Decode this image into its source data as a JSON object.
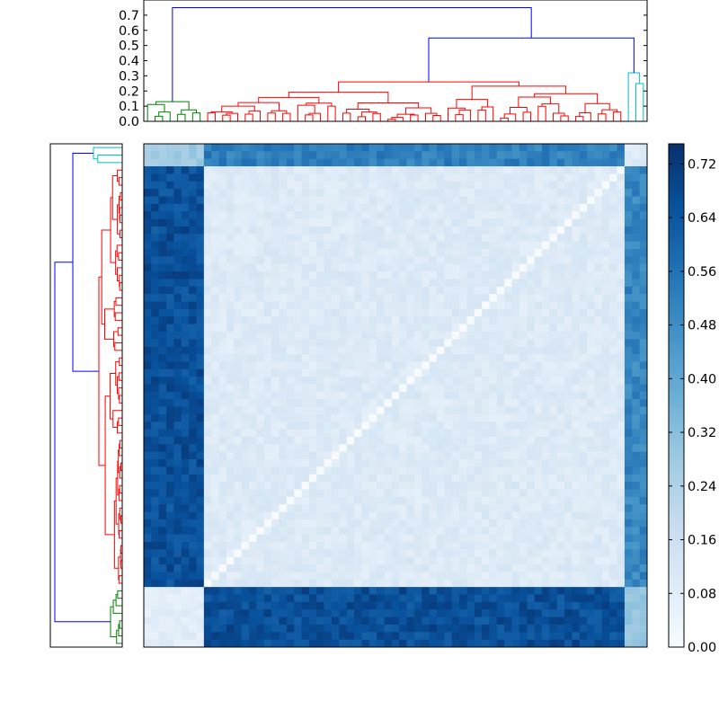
{
  "chart_data": [
    {
      "type": "dendrogram",
      "orientation": "top",
      "ylim": [
        0,
        0.8
      ],
      "yticks": [
        "0.0",
        "0.1",
        "0.2",
        "0.3",
        "0.4",
        "0.5",
        "0.6",
        "0.7"
      ],
      "ytick_values": [
        0.0,
        0.1,
        0.2,
        0.3,
        0.4,
        0.5,
        0.6,
        0.7
      ],
      "n_leaves": 67,
      "clusters": [
        {
          "color": "#008000",
          "leaves": 8,
          "merge_height": 0.13
        },
        {
          "color": "#ff0000",
          "leaves": 56,
          "merge_height": 0.26
        },
        {
          "color": "#00bfbf",
          "leaves": 3,
          "merge_height": 0.32
        }
      ],
      "top_links": [
        {
          "color": "#0000ff",
          "join": [
            "red",
            "cyan"
          ],
          "height": 0.55
        },
        {
          "color": "#0000ff",
          "join": [
            "green",
            "red+cyan"
          ],
          "height": 0.75
        }
      ]
    },
    {
      "type": "dendrogram",
      "orientation": "left",
      "n_leaves": 67,
      "clusters": [
        {
          "color": "#00bfbf",
          "leaves": 3
        },
        {
          "color": "#ff0000",
          "leaves": 56
        },
        {
          "color": "#008000",
          "leaves": 8
        }
      ],
      "top_links": [
        {
          "color": "#0000ff",
          "join": [
            "cyan",
            "red"
          ]
        },
        {
          "color": "#0000ff",
          "join": [
            "cyan+red",
            "green"
          ]
        }
      ]
    },
    {
      "type": "heatmap",
      "n_rows": 67,
      "n_cols": 67,
      "colormap": "Blues",
      "vmin": 0.0,
      "vmax": 0.75,
      "row_groups": [
        {
          "name": "cyan",
          "size": 3
        },
        {
          "name": "red",
          "size": 56
        },
        {
          "name": "green",
          "size": 8
        }
      ],
      "col_groups": [
        {
          "name": "green",
          "size": 8
        },
        {
          "name": "red",
          "size": 56
        },
        {
          "name": "cyan",
          "size": 3
        }
      ],
      "block_values": {
        "cyan-green": 0.28,
        "cyan-red": 0.52,
        "cyan-cyan": 0.1,
        "red-green": 0.66,
        "red-red": 0.1,
        "red-cyan": 0.5,
        "green-green": 0.08,
        "green-red": 0.66,
        "green-cyan": 0.3
      }
    },
    {
      "type": "colorbar",
      "tick_labels": [
        "0.00",
        "0.08",
        "0.16",
        "0.24",
        "0.32",
        "0.40",
        "0.48",
        "0.56",
        "0.64",
        "0.72"
      ],
      "tick_values": [
        0.0,
        0.08,
        0.16,
        0.24,
        0.32,
        0.4,
        0.48,
        0.56,
        0.64,
        0.72
      ],
      "vmin": 0.0,
      "vmax": 0.75
    }
  ]
}
